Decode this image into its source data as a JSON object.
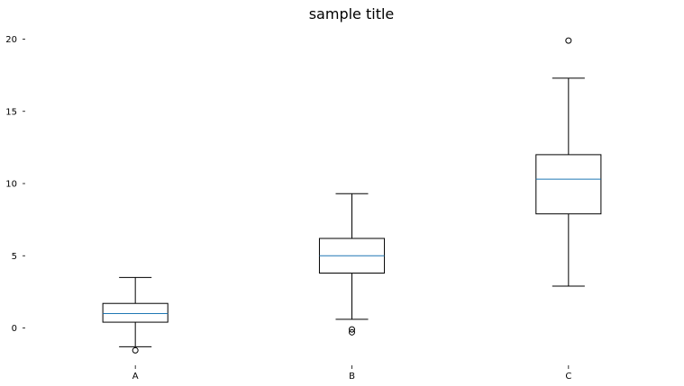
{
  "chart_data": {
    "type": "box",
    "title": "sample title",
    "xlabel": "",
    "ylabel": "",
    "categories": [
      "A",
      "B",
      "C"
    ],
    "ylim": [
      -2.5,
      21.0
    ],
    "yticks": [
      0,
      5,
      10,
      15,
      20
    ],
    "grid": false,
    "legend": "none",
    "box_color": "#000000",
    "median_color": "#1f77b4",
    "boxes": [
      {
        "category": "A",
        "whisker_low": -1.3,
        "q1": 0.4,
        "median": 1.0,
        "q3": 1.7,
        "whisker_high": 3.5,
        "outliers": [
          -1.55
        ]
      },
      {
        "category": "B",
        "whisker_low": 0.6,
        "q1": 3.8,
        "median": 5.0,
        "q3": 6.2,
        "whisker_high": 9.3,
        "outliers": [
          -0.1,
          -0.3
        ]
      },
      {
        "category": "C",
        "whisker_low": 2.9,
        "q1": 7.9,
        "median": 10.3,
        "q3": 12.0,
        "whisker_high": 17.3,
        "outliers": [
          19.9
        ]
      }
    ]
  }
}
